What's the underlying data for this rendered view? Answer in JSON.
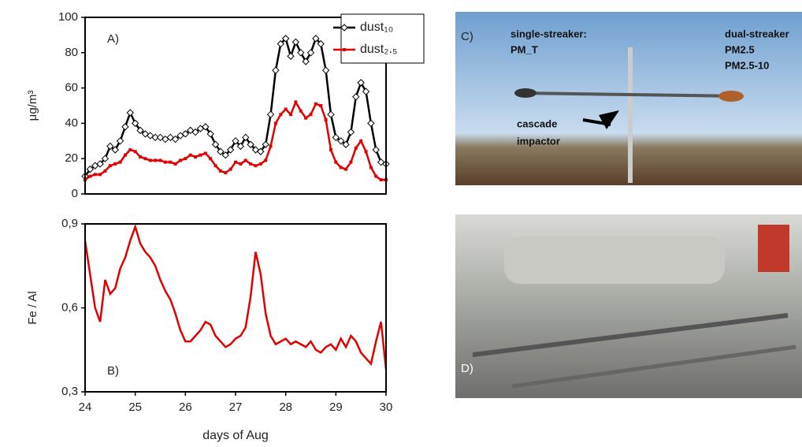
{
  "chart_data": [
    {
      "type": "line",
      "annotation": "A)",
      "ylabel": "μg/m³",
      "x": [
        24.0,
        24.1,
        24.2,
        24.3,
        24.4,
        24.5,
        24.6,
        24.7,
        24.8,
        24.9,
        25.0,
        25.1,
        25.2,
        25.3,
        25.4,
        25.5,
        25.6,
        25.7,
        25.8,
        25.9,
        26.0,
        26.1,
        26.2,
        26.3,
        26.4,
        26.5,
        26.6,
        26.7,
        26.8,
        26.9,
        27.0,
        27.1,
        27.2,
        27.3,
        27.4,
        27.5,
        27.6,
        27.7,
        27.8,
        27.9,
        28.0,
        28.1,
        28.2,
        28.3,
        28.4,
        28.5,
        28.6,
        28.7,
        28.8,
        28.9,
        29.0,
        29.1,
        29.2,
        29.3,
        29.4,
        29.5,
        29.6,
        29.7,
        29.8,
        29.9,
        30.0
      ],
      "xlim": [
        24,
        30
      ],
      "ylim": [
        0,
        100
      ],
      "yticks": [
        0,
        20,
        40,
        60,
        80,
        100
      ],
      "legend": "upper right",
      "series": [
        {
          "name": "dust₁₀",
          "color": "#000000",
          "marker": "diamond",
          "values": [
            10,
            14,
            16,
            17,
            20,
            27,
            25,
            30,
            38,
            46,
            40,
            36,
            34,
            33,
            32,
            32,
            31,
            32,
            31,
            33,
            34,
            36,
            35,
            37,
            38,
            34,
            28,
            24,
            22,
            25,
            30,
            27,
            32,
            28,
            25,
            24,
            28,
            45,
            70,
            85,
            88,
            78,
            86,
            80,
            75,
            80,
            88,
            85,
            70,
            45,
            32,
            30,
            28,
            35,
            55,
            63,
            58,
            40,
            25,
            18,
            17
          ]
        },
        {
          "name": "dust₂.₅",
          "color": "#e00000",
          "marker": "square",
          "values": [
            8,
            10,
            11,
            11,
            13,
            16,
            17,
            18,
            22,
            25,
            24,
            21,
            20,
            19,
            19,
            19,
            18,
            18,
            17,
            19,
            20,
            22,
            21,
            22,
            23,
            20,
            16,
            13,
            12,
            14,
            18,
            17,
            19,
            17,
            16,
            17,
            19,
            27,
            40,
            45,
            48,
            45,
            52,
            47,
            43,
            45,
            51,
            50,
            42,
            25,
            18,
            15,
            14,
            18,
            26,
            30,
            24,
            15,
            10,
            8,
            8
          ]
        }
      ]
    },
    {
      "type": "line",
      "annotation": "B)",
      "ylabel": "Fe / Al",
      "xlabel": "days of Aug",
      "x": [
        24.0,
        24.1,
        24.2,
        24.3,
        24.4,
        24.5,
        24.6,
        24.7,
        24.8,
        24.9,
        25.0,
        25.1,
        25.2,
        25.3,
        25.4,
        25.5,
        25.6,
        25.7,
        25.8,
        25.9,
        26.0,
        26.1,
        26.2,
        26.3,
        26.4,
        26.5,
        26.6,
        26.7,
        26.8,
        26.9,
        27.0,
        27.1,
        27.2,
        27.3,
        27.4,
        27.5,
        27.6,
        27.7,
        27.8,
        27.9,
        28.0,
        28.1,
        28.2,
        28.3,
        28.4,
        28.5,
        28.6,
        28.7,
        28.8,
        28.9,
        29.0,
        29.1,
        29.2,
        29.3,
        29.4,
        29.5,
        29.6,
        29.7,
        29.8,
        29.9,
        30.0
      ],
      "xlim": [
        24,
        30
      ],
      "xticks": [
        24,
        25,
        26,
        27,
        28,
        29,
        30
      ],
      "ylim": [
        0.3,
        0.9
      ],
      "yticks": [
        {
          "value": 0.3,
          "label": "0,3"
        },
        {
          "value": 0.6,
          "label": "0,6"
        },
        {
          "value": 0.9,
          "label": "0,9"
        }
      ],
      "series": [
        {
          "color": "#e00000",
          "values": [
            0.84,
            0.72,
            0.6,
            0.55,
            0.7,
            0.65,
            0.67,
            0.74,
            0.78,
            0.84,
            0.89,
            0.83,
            0.8,
            0.78,
            0.75,
            0.7,
            0.66,
            0.63,
            0.58,
            0.52,
            0.48,
            0.48,
            0.5,
            0.52,
            0.55,
            0.54,
            0.5,
            0.48,
            0.46,
            0.47,
            0.49,
            0.5,
            0.53,
            0.64,
            0.8,
            0.72,
            0.58,
            0.5,
            0.47,
            0.48,
            0.49,
            0.47,
            0.48,
            0.47,
            0.46,
            0.48,
            0.45,
            0.44,
            0.46,
            0.47,
            0.45,
            0.49,
            0.46,
            0.5,
            0.48,
            0.44,
            0.42,
            0.4,
            0.48,
            0.55,
            0.38
          ]
        }
      ]
    }
  ],
  "photos": [
    {
      "label": "C)",
      "left_title": "single-streaker:",
      "left_sub": "PM_T",
      "right_title": "dual-streaker",
      "right_sub1": "PM2.5",
      "right_sub2": "PM2.5-10",
      "arrow_text1": "cascade",
      "arrow_text2": "impactor"
    },
    {
      "label": "D)"
    }
  ]
}
